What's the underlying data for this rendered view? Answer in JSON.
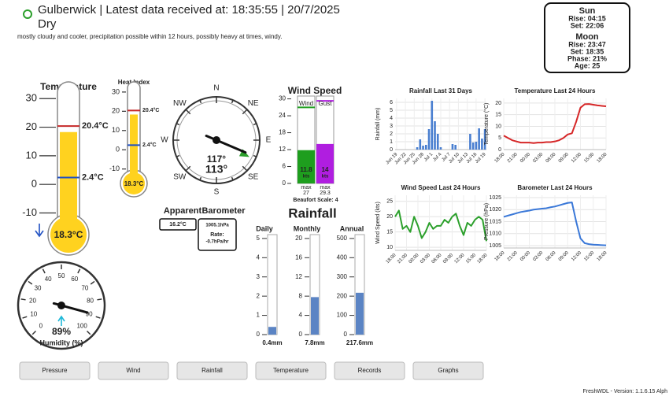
{
  "header": {
    "title": "Gulberwick | Latest data received at: 18:35:55 | 20/7/2025",
    "status": "Dry",
    "forecast": "mostly cloudy and cooler, precipitation possible within 12 hours, possibly heavy at times, windy."
  },
  "sun_moon": {
    "sun_title": "Sun",
    "sun_rise": "Rise: 04:15",
    "sun_set": "Set: 22:06",
    "moon_title": "Moon",
    "moon_rise": "Rise: 23:47",
    "moon_set": "Set: 18:35",
    "moon_phase": "Phase: 21%",
    "moon_age": "Age: 25"
  },
  "temperature": {
    "title": "Temperature",
    "lim": [
      -14,
      32
    ],
    "ticks": [
      -10,
      0,
      10,
      20,
      30
    ],
    "value": 18.3,
    "value_label": "18.3°C",
    "max": 20.4,
    "max_label": "20.4°C",
    "min": 2.4,
    "min_label": "2.4°C"
  },
  "heat_index": {
    "title": "Heat Index",
    "lim": [
      -13,
      32
    ],
    "ticks": [
      -10,
      0,
      10,
      20,
      30
    ],
    "value": 18.3,
    "value_label": "18.3°C",
    "max": 20.4,
    "max_label": "20.4°C",
    "min": 2.4,
    "min_label": "2.4°C"
  },
  "compass": {
    "labels": [
      "N",
      "NE",
      "E",
      "SE",
      "S",
      "SW",
      "W",
      "NW"
    ],
    "average": 117,
    "average_label": "117°",
    "direction": 113,
    "direction_label": "113°"
  },
  "wind_speed": {
    "title": "Wind Speed",
    "lim": [
      0,
      31
    ],
    "ticks": [
      0,
      6,
      12,
      18,
      24,
      30
    ],
    "bars": [
      {
        "name": "Wind",
        "color": "#1e9e1e",
        "value": 11.8,
        "unit": "kts",
        "max_text": "max",
        "max": 27
      },
      {
        "name": "Gust",
        "color": "#b01ee0",
        "value": 14,
        "unit": "kts",
        "max_text": "max",
        "max": 29.3
      }
    ],
    "beaufort": "Beaufort Scale: 4"
  },
  "apparent": {
    "title": "Apparent",
    "value": 16.2,
    "value_label": "16.2°C"
  },
  "barometer": {
    "title": "Barometer",
    "value": 1005.1,
    "value_label": "1005.1hPa",
    "rate_title": "Rate:",
    "rate": -0.7,
    "rate_label": "-0.7hPa/hr"
  },
  "rainfall": {
    "title": "Rainfall",
    "gauges": [
      {
        "name": "Daily",
        "lim": [
          0,
          5.2
        ],
        "ticks": [
          0,
          1,
          2,
          3,
          4,
          5
        ],
        "value": 0.4,
        "value_label": "0.4mm"
      },
      {
        "name": "Monthly",
        "lim": [
          0,
          20.8
        ],
        "ticks": [
          0,
          4,
          8,
          12,
          16,
          20
        ],
        "value": 7.8,
        "value_label": "7.8mm"
      },
      {
        "name": "Annual",
        "lim": [
          0,
          520
        ],
        "ticks": [
          0,
          100,
          200,
          300,
          400,
          500
        ],
        "value": 217.6,
        "value_label": "217.6mm"
      }
    ]
  },
  "humidity": {
    "title": "Humidity (%)",
    "ticks": [
      0,
      10,
      20,
      30,
      40,
      50,
      60,
      70,
      80,
      90,
      100
    ],
    "value": 89,
    "value_label": "89%"
  },
  "chart_data": [
    {
      "type": "bar",
      "title": "Rainfall Last 31 Days",
      "ylabel": "Rainfall (mm)",
      "color": "#4a7fd0",
      "categories": [
        "Jun 19",
        null,
        null,
        "Jun 22",
        null,
        null,
        "Jun 25",
        null,
        null,
        "Jun 28",
        null,
        null,
        "Jul 1",
        null,
        null,
        "Jul 4",
        null,
        null,
        "Jul 7",
        null,
        null,
        "Jul 10",
        null,
        null,
        "Jul 13",
        null,
        null,
        "Jul 16",
        null,
        null,
        "Jul 19"
      ],
      "values": [
        0,
        0,
        0,
        0,
        0,
        0,
        0,
        0.3,
        1.3,
        0.5,
        0.6,
        2.6,
        6.2,
        3.6,
        2.0,
        0.3,
        0,
        0,
        0,
        0.7,
        0.6,
        0,
        0,
        0,
        0,
        2.0,
        0.9,
        1.0,
        2.7,
        1.4,
        2.6
      ],
      "ylim": [
        0,
        6.5
      ],
      "yticks": [
        0,
        1,
        2,
        3,
        4,
        5,
        6
      ],
      "grid": true
    },
    {
      "type": "line",
      "title": "Temperature Last 24 Hours",
      "ylabel": "Temperature (°C)",
      "color": "#d62728",
      "categories": [
        "18:00",
        null,
        null,
        "21:00",
        null,
        null,
        "00:00",
        null,
        null,
        "03:00",
        null,
        null,
        "06:00",
        null,
        null,
        "09:00",
        null,
        null,
        "12:00",
        null,
        null,
        "15:00",
        null,
        null,
        "18:00"
      ],
      "values": [
        6,
        5,
        4,
        3.5,
        3,
        3,
        3,
        2.8,
        3,
        3,
        3.2,
        3.2,
        3.5,
        4,
        5,
        6.5,
        7,
        12,
        18,
        19.5,
        19.6,
        19.3,
        19,
        18.8,
        18.6
      ],
      "ylim": [
        0,
        22
      ],
      "yticks": [
        0,
        5,
        10,
        15,
        20
      ],
      "grid": true
    },
    {
      "type": "line",
      "title": "Wind Speed Last 24 Hours",
      "ylabel": "Wind Speed (kts)",
      "color": "#2ca02c",
      "categories": [
        "18:00",
        null,
        null,
        "21:00",
        null,
        null,
        "00:00",
        null,
        null,
        "03:00",
        null,
        null,
        "06:00",
        null,
        null,
        "09:00",
        null,
        null,
        "12:00",
        null,
        null,
        "15:00",
        null,
        null,
        "18:00"
      ],
      "values": [
        20,
        22,
        16,
        17,
        15,
        20,
        17,
        13,
        15,
        18,
        16,
        17,
        17,
        19,
        18,
        20,
        21,
        17,
        14,
        18,
        17,
        19,
        20,
        19,
        12
      ],
      "ylim": [
        9,
        27
      ],
      "yticks": [
        10,
        15,
        20,
        25
      ],
      "grid": true
    },
    {
      "type": "line",
      "title": "Barometer Last 24 Hours",
      "ylabel": "Pressure (hPa)",
      "color": "#3a78d8",
      "categories": [
        "18:00",
        null,
        null,
        "21:00",
        null,
        null,
        "00:00",
        null,
        null,
        "03:00",
        null,
        null,
        "06:00",
        null,
        null,
        "09:00",
        null,
        null,
        "12:00",
        null,
        null,
        "15:00",
        null,
        null,
        "18:00"
      ],
      "values": [
        1017,
        1017.5,
        1018,
        1018.5,
        1019,
        1019.3,
        1019.6,
        1020,
        1020.2,
        1020.4,
        1020.6,
        1021,
        1021.3,
        1021.8,
        1022.3,
        1022.8,
        1023,
        1015,
        1008,
        1006,
        1005.6,
        1005.4,
        1005.3,
        1005.2,
        1005.1
      ],
      "ylim": [
        1004,
        1026
      ],
      "yticks": [
        1005,
        1010,
        1015,
        1020,
        1025
      ],
      "grid": true
    }
  ],
  "buttons": [
    "Pressure",
    "Wind",
    "Rainfall",
    "Temperature",
    "Records",
    "Graphs"
  ],
  "footer": "FreshWDL - Version: 1.1.6.15 Alph"
}
